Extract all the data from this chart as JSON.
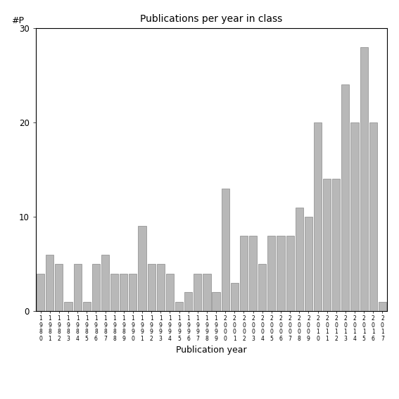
{
  "title": "Publications per year in class",
  "xlabel": "Publication year",
  "ylabel": "#P",
  "bar_color": "#b8b8b8",
  "bar_edgecolor": "#888888",
  "ylim": [
    0,
    30
  ],
  "yticks": [
    0,
    10,
    20,
    30
  ],
  "years": [
    1980,
    1981,
    1982,
    1983,
    1984,
    1985,
    1986,
    1987,
    1988,
    1989,
    1990,
    1991,
    1992,
    1993,
    1994,
    1995,
    1996,
    1997,
    1998,
    1999,
    2000,
    2001,
    2002,
    2003,
    2004,
    2005,
    2006,
    2007,
    2008,
    2009,
    2010,
    2011,
    2012,
    2013,
    2014,
    2015,
    2016,
    2017
  ],
  "values": [
    4,
    6,
    5,
    1,
    5,
    1,
    5,
    6,
    4,
    4,
    4,
    9,
    5,
    5,
    4,
    1,
    2,
    4,
    4,
    2,
    13,
    3,
    8,
    8,
    5,
    8,
    8,
    8,
    11,
    10,
    20,
    14,
    14,
    24,
    20,
    28,
    20,
    1
  ]
}
